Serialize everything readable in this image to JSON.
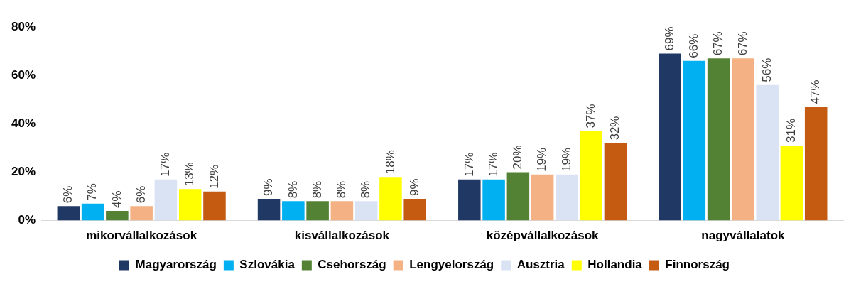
{
  "chart_data": {
    "type": "bar",
    "categories": [
      "mikorvállalkozások",
      "kisvállalkozások",
      "középvállalkozások",
      "nagyvállalatok"
    ],
    "series": [
      {
        "name": "Magyarország",
        "color": "#203864",
        "values": [
          6,
          9,
          17,
          69
        ],
        "value_labels": [
          "6%",
          "9%",
          "17%",
          "69%"
        ]
      },
      {
        "name": "Szlovákia",
        "color": "#00b0f0",
        "values": [
          7,
          8,
          17,
          66
        ],
        "value_labels": [
          "7%",
          "8%",
          "17%",
          "66%"
        ]
      },
      {
        "name": "Csehország",
        "color": "#548235",
        "values": [
          4,
          8,
          20,
          67
        ],
        "value_labels": [
          "4%",
          "8%",
          "20%",
          "67%"
        ]
      },
      {
        "name": "Lengyelország",
        "color": "#f4b183",
        "values": [
          6,
          8,
          19,
          67
        ],
        "value_labels": [
          "6%",
          "8%",
          "19%",
          "67%"
        ]
      },
      {
        "name": "Ausztria",
        "color": "#dae3f3",
        "values": [
          17,
          8,
          19,
          56
        ],
        "value_labels": [
          "17%",
          "8%",
          "19%",
          "56%"
        ]
      },
      {
        "name": "Hollandia",
        "color": "#ffff00",
        "values": [
          13,
          18,
          37,
          31
        ],
        "value_labels": [
          "13%",
          "18%",
          "37%",
          "31%"
        ]
      },
      {
        "name": "Finnország",
        "color": "#c55a11",
        "values": [
          12,
          9,
          32,
          47
        ],
        "value_labels": [
          "12%",
          "9%",
          "32%",
          "47%"
        ]
      }
    ],
    "ylim": [
      0,
      80
    ],
    "yticks": [
      {
        "value": 0,
        "label": "0%"
      },
      {
        "value": 20,
        "label": "20%"
      },
      {
        "value": 40,
        "label": "40%"
      },
      {
        "value": 60,
        "label": "60%"
      },
      {
        "value": 80,
        "label": "80%"
      }
    ],
    "grid": false,
    "legend": "bottom"
  }
}
